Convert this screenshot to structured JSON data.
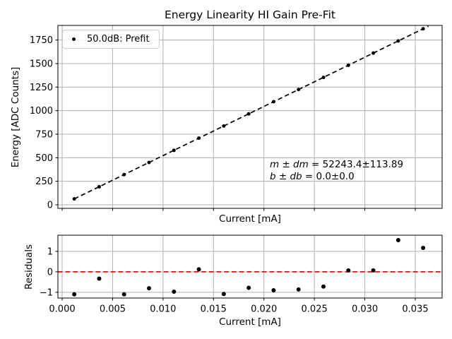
{
  "figure": {
    "background": "#ffffff",
    "grid_color": "#b0b0b0",
    "spine_color": "#000000"
  },
  "chart_data": [
    {
      "type": "scatter",
      "name": "energy-linearity",
      "title": "Energy Linearity HI Gain Pre-Fit",
      "xlabel": "Current [mA]",
      "ylabel": "Energy [ADC Counts]",
      "legend": [
        {
          "label": "50.0dB: Prefit",
          "marker": "point",
          "color": "#000000"
        }
      ],
      "x": [
        0.0012,
        0.00367,
        0.00614,
        0.00861,
        0.01108,
        0.01355,
        0.01602,
        0.01849,
        0.02096,
        0.02343,
        0.0259,
        0.02837,
        0.03084,
        0.03331,
        0.03578
      ],
      "y": [
        62.7,
        191.7,
        320.8,
        449.8,
        578.9,
        707.9,
        836.9,
        966.0,
        1095.0,
        1224.1,
        1353.1,
        1482.1,
        1611.2,
        1740.2,
        1869.3
      ],
      "marker_color": "#000000",
      "marker_radius": 2.5,
      "fit_line": {
        "slope": 52243.4,
        "slope_err": 113.89,
        "intercept": 0.0,
        "intercept_err": 0.0,
        "color": "#000000",
        "style": "dashed",
        "x_start": 0.0012,
        "x_end": 0.0363
      },
      "annotation_parts": {
        "line1_var": "m ± dm",
        "line1_rest": " = 52243.4±113.89",
        "line2_var": "b ± db",
        "line2_rest": " = 0.0±0.0"
      },
      "xlim": [
        -0.00042,
        0.03766
      ],
      "ylim": [
        -37.5,
        1905
      ],
      "xticks": [
        0.0,
        0.005,
        0.01,
        0.015,
        0.02,
        0.025,
        0.03,
        0.035
      ],
      "xtick_labels_visible": false,
      "xtick_decimals": 3,
      "yticks": [
        0,
        250,
        500,
        750,
        1000,
        1250,
        1500,
        1750
      ],
      "grid": true,
      "legend_position": "upper left"
    },
    {
      "type": "scatter",
      "name": "residuals",
      "xlabel": "Current [mA]",
      "ylabel": "Residuals",
      "x": [
        0.0012,
        0.00367,
        0.00614,
        0.00861,
        0.01108,
        0.01355,
        0.01602,
        0.01849,
        0.02096,
        0.02343,
        0.0259,
        0.02837,
        0.03084,
        0.03331,
        0.03578
      ],
      "y": [
        -1.1,
        -0.33,
        -1.1,
        -0.8,
        -0.97,
        0.12,
        -1.08,
        -0.78,
        -0.9,
        -0.86,
        -0.72,
        0.07,
        0.07,
        1.55,
        1.17
      ],
      "marker_color": "#000000",
      "marker_radius": 3,
      "refline": {
        "y": 0,
        "color": "#ff0000",
        "style": "dashed"
      },
      "xlim": [
        -0.00042,
        0.03766
      ],
      "ylim": [
        -1.28,
        1.79
      ],
      "xticks": [
        0.0,
        0.005,
        0.01,
        0.015,
        0.02,
        0.025,
        0.03,
        0.035
      ],
      "xtick_labels_visible": true,
      "xtick_decimals": 3,
      "yticks": [
        -1,
        0,
        1
      ],
      "grid": true
    }
  ]
}
